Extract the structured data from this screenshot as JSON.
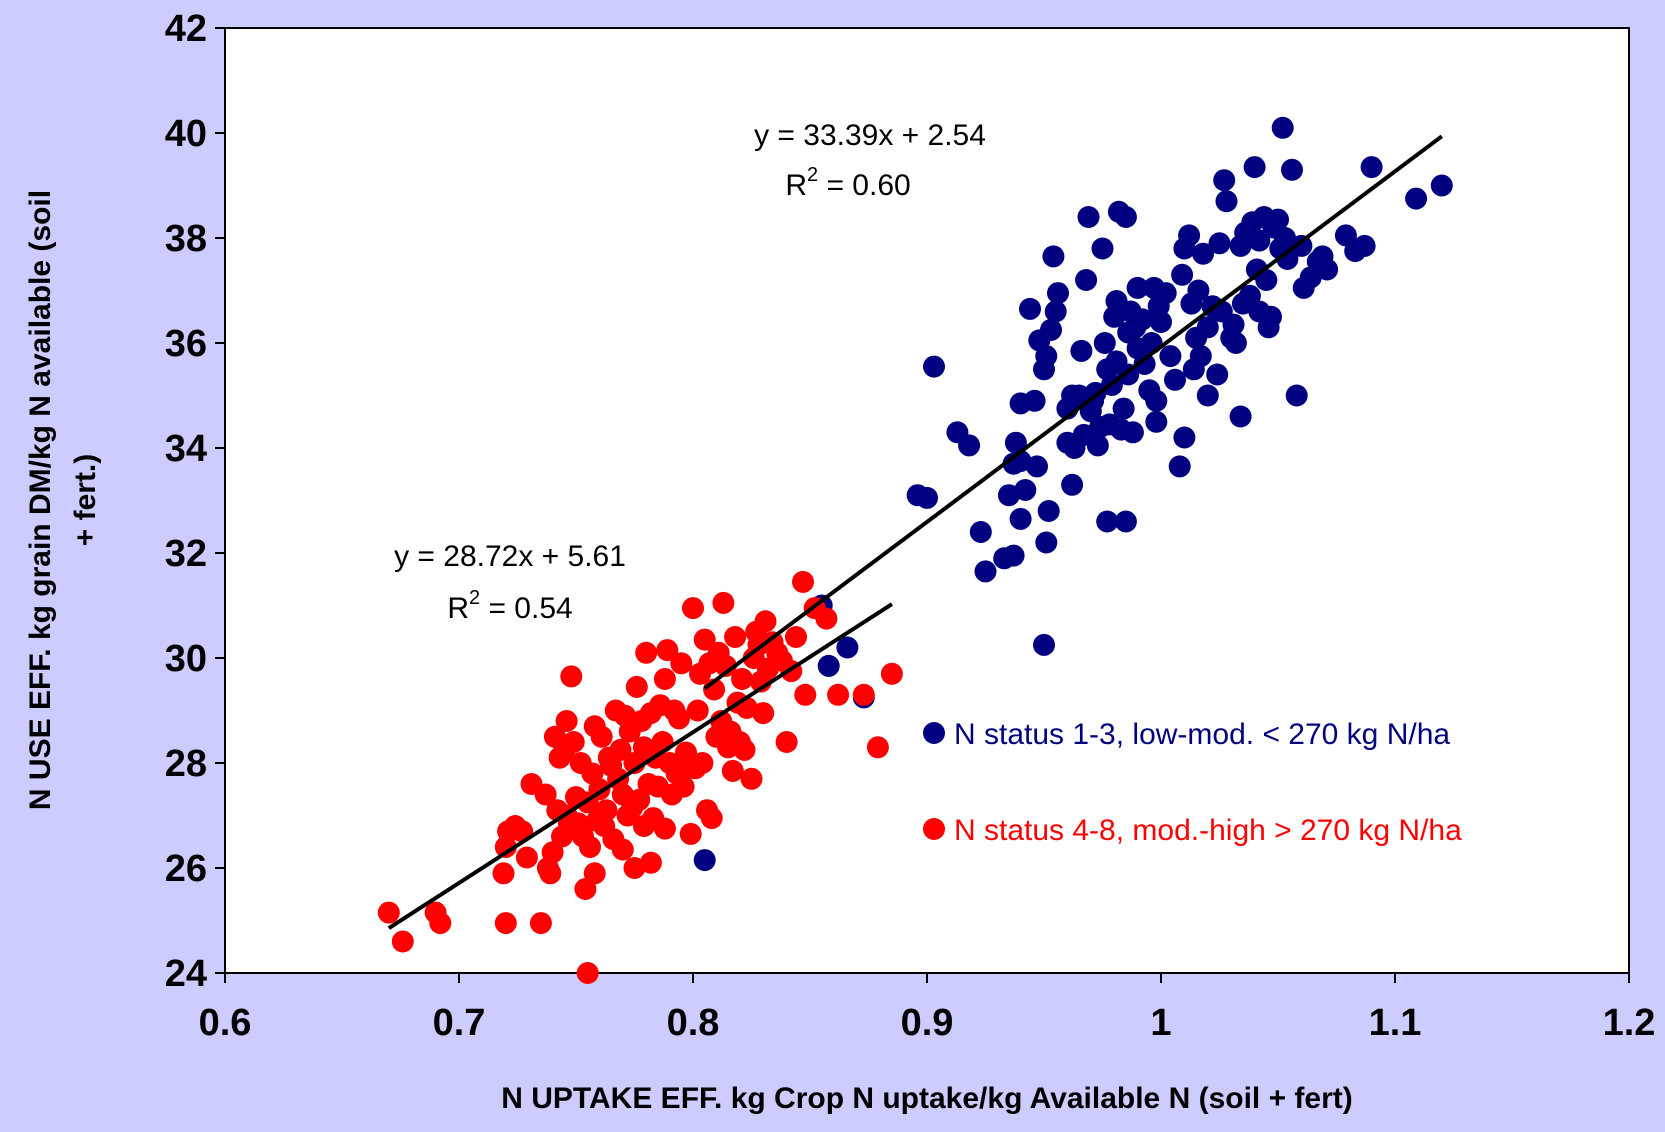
{
  "chart_data": {
    "type": "scatter",
    "xlabel": "N UPTAKE EFF. kg Crop N uptake/kg Available N (soil + fert)",
    "ylabel_line1": "N USE EFF. kg grain DM/kg N available (soil",
    "ylabel_line2": "+ fert.)",
    "xlim": [
      0.6,
      1.2
    ],
    "ylim": [
      24,
      42
    ],
    "xticks": [
      "0.6",
      "0.7",
      "0.8",
      "0.9",
      "1",
      "1.1",
      "1.2"
    ],
    "yticks": [
      "24",
      "26",
      "28",
      "30",
      "32",
      "34",
      "36",
      "38",
      "40",
      "42"
    ],
    "grid": false,
    "legend_position": "right-middle",
    "series": [
      {
        "name": "N status 1-3, low-mod. < 270 kg N/ha",
        "color": "#000080",
        "equation_line": "y = 33.39x + 2.54",
        "r2_label": "R",
        "r2_sup": "2",
        "r2_value": " = 0.60",
        "trendline": {
          "slope": 33.39,
          "intercept": 2.54,
          "x_range": [
            0.805,
            1.12
          ]
        },
        "points": [
          [
            0.805,
            26.15
          ],
          [
            0.858,
            29.85
          ],
          [
            0.866,
            30.2
          ],
          [
            0.873,
            29.25
          ],
          [
            0.855,
            31.0
          ],
          [
            0.896,
            33.1
          ],
          [
            0.9,
            33.05
          ],
          [
            0.903,
            35.55
          ],
          [
            0.913,
            34.3
          ],
          [
            0.918,
            34.05
          ],
          [
            0.923,
            32.4
          ],
          [
            0.925,
            31.65
          ],
          [
            0.933,
            31.9
          ],
          [
            0.937,
            31.95
          ],
          [
            0.935,
            33.1
          ],
          [
            0.94,
            33.75
          ],
          [
            0.94,
            32.65
          ],
          [
            0.942,
            33.2
          ],
          [
            0.947,
            33.65
          ],
          [
            0.938,
            34.1
          ],
          [
            0.937,
            33.7
          ],
          [
            0.94,
            34.85
          ],
          [
            0.944,
            36.65
          ],
          [
            0.946,
            34.9
          ],
          [
            0.948,
            36.05
          ],
          [
            0.95,
            35.5
          ],
          [
            0.951,
            35.75
          ],
          [
            0.952,
            32.8
          ],
          [
            0.951,
            32.2
          ],
          [
            0.95,
            30.25
          ],
          [
            0.953,
            36.25
          ],
          [
            0.954,
            37.65
          ],
          [
            0.955,
            36.6
          ],
          [
            0.956,
            36.95
          ],
          [
            0.962,
            33.3
          ],
          [
            0.96,
            34.1
          ],
          [
            0.96,
            34.75
          ],
          [
            0.962,
            35.0
          ],
          [
            0.963,
            34.0
          ],
          [
            0.965,
            35.0
          ],
          [
            0.966,
            35.85
          ],
          [
            0.967,
            34.25
          ],
          [
            0.968,
            37.2
          ],
          [
            0.969,
            38.4
          ],
          [
            0.97,
            34.7
          ],
          [
            0.971,
            34.9
          ],
          [
            0.972,
            35.05
          ],
          [
            0.973,
            34.05
          ],
          [
            0.974,
            34.4
          ],
          [
            0.975,
            37.8
          ],
          [
            0.976,
            36.0
          ],
          [
            0.977,
            35.5
          ],
          [
            0.977,
            32.6
          ],
          [
            0.978,
            34.45
          ],
          [
            0.979,
            35.2
          ],
          [
            0.98,
            36.5
          ],
          [
            0.981,
            36.8
          ],
          [
            0.981,
            35.65
          ],
          [
            0.982,
            38.5
          ],
          [
            0.983,
            34.35
          ],
          [
            0.984,
            34.75
          ],
          [
            0.985,
            32.6
          ],
          [
            0.985,
            38.4
          ],
          [
            0.986,
            35.4
          ],
          [
            0.986,
            36.2
          ],
          [
            0.987,
            36.6
          ],
          [
            0.988,
            34.3
          ],
          [
            0.989,
            36.3
          ],
          [
            0.99,
            35.9
          ],
          [
            0.99,
            37.05
          ],
          [
            0.992,
            36.45
          ],
          [
            0.993,
            35.6
          ],
          [
            0.995,
            35.1
          ],
          [
            0.996,
            36.0
          ],
          [
            0.997,
            37.05
          ],
          [
            0.998,
            34.5
          ],
          [
            0.998,
            34.9
          ],
          [
            0.999,
            36.7
          ],
          [
            1.0,
            36.4
          ],
          [
            1.002,
            36.95
          ],
          [
            1.004,
            35.75
          ],
          [
            1.006,
            35.3
          ],
          [
            1.008,
            33.65
          ],
          [
            1.009,
            37.3
          ],
          [
            1.01,
            34.2
          ],
          [
            1.01,
            37.8
          ],
          [
            1.012,
            38.05
          ],
          [
            1.013,
            36.75
          ],
          [
            1.014,
            35.5
          ],
          [
            1.015,
            36.1
          ],
          [
            1.016,
            37.0
          ],
          [
            1.017,
            35.75
          ],
          [
            1.018,
            37.7
          ],
          [
            1.02,
            35.0
          ],
          [
            1.02,
            36.3
          ],
          [
            1.022,
            36.7
          ],
          [
            1.024,
            35.4
          ],
          [
            1.025,
            37.9
          ],
          [
            1.026,
            36.6
          ],
          [
            1.027,
            39.1
          ],
          [
            1.028,
            38.7
          ],
          [
            1.03,
            36.1
          ],
          [
            1.031,
            36.35
          ],
          [
            1.032,
            36.0
          ],
          [
            1.034,
            37.85
          ],
          [
            1.034,
            34.6
          ],
          [
            1.035,
            36.75
          ],
          [
            1.036,
            38.1
          ],
          [
            1.038,
            36.9
          ],
          [
            1.039,
            38.3
          ],
          [
            1.04,
            39.35
          ],
          [
            1.041,
            37.4
          ],
          [
            1.042,
            37.95
          ],
          [
            1.042,
            36.6
          ],
          [
            1.044,
            38.4
          ],
          [
            1.045,
            37.2
          ],
          [
            1.046,
            36.3
          ],
          [
            1.047,
            36.5
          ],
          [
            1.048,
            38.2
          ],
          [
            1.05,
            38.35
          ],
          [
            1.051,
            37.8
          ],
          [
            1.052,
            40.1
          ],
          [
            1.053,
            38.0
          ],
          [
            1.054,
            37.6
          ],
          [
            1.056,
            39.3
          ],
          [
            1.058,
            35.0
          ],
          [
            1.06,
            37.85
          ],
          [
            1.061,
            37.05
          ],
          [
            1.064,
            37.25
          ],
          [
            1.067,
            37.55
          ],
          [
            1.069,
            37.65
          ],
          [
            1.071,
            37.4
          ],
          [
            1.079,
            38.05
          ],
          [
            1.083,
            37.75
          ],
          [
            1.087,
            37.85
          ],
          [
            1.09,
            39.35
          ],
          [
            1.109,
            38.75
          ],
          [
            1.12,
            39.0
          ]
        ]
      },
      {
        "name": "N status 4-8, mod.-high > 270 kg N/ha",
        "color": "#ff0000",
        "equation_line": "y = 28.72x + 5.61",
        "r2_label": "R",
        "r2_sup": "2",
        "r2_value": " = 0.54",
        "trendline": {
          "slope": 28.72,
          "intercept": 5.61,
          "x_range": [
            0.67,
            0.885
          ]
        },
        "points": [
          [
            0.67,
            25.15
          ],
          [
            0.676,
            24.6
          ],
          [
            0.69,
            25.15
          ],
          [
            0.692,
            24.95
          ],
          [
            0.72,
            24.95
          ],
          [
            0.719,
            25.9
          ],
          [
            0.72,
            26.4
          ],
          [
            0.721,
            26.7
          ],
          [
            0.724,
            26.8
          ],
          [
            0.727,
            26.7
          ],
          [
            0.729,
            26.2
          ],
          [
            0.731,
            27.6
          ],
          [
            0.735,
            24.95
          ],
          [
            0.737,
            27.4
          ],
          [
            0.738,
            26.0
          ],
          [
            0.739,
            25.9
          ],
          [
            0.74,
            26.3
          ],
          [
            0.741,
            28.5
          ],
          [
            0.742,
            27.1
          ],
          [
            0.743,
            28.1
          ],
          [
            0.744,
            26.6
          ],
          [
            0.745,
            28.25
          ],
          [
            0.746,
            27.0
          ],
          [
            0.746,
            28.8
          ],
          [
            0.747,
            26.85
          ],
          [
            0.748,
            29.65
          ],
          [
            0.749,
            28.4
          ],
          [
            0.75,
            27.35
          ],
          [
            0.751,
            26.85
          ],
          [
            0.752,
            28.0
          ],
          [
            0.753,
            26.6
          ],
          [
            0.754,
            25.6
          ],
          [
            0.755,
            24.0
          ],
          [
            0.755,
            27.25
          ],
          [
            0.756,
            26.4
          ],
          [
            0.757,
            27.8
          ],
          [
            0.758,
            28.7
          ],
          [
            0.758,
            25.9
          ],
          [
            0.759,
            26.9
          ],
          [
            0.76,
            27.5
          ],
          [
            0.761,
            28.5
          ],
          [
            0.762,
            26.8
          ],
          [
            0.763,
            27.1
          ],
          [
            0.764,
            28.1
          ],
          [
            0.765,
            27.95
          ],
          [
            0.766,
            26.55
          ],
          [
            0.767,
            29.0
          ],
          [
            0.768,
            27.7
          ],
          [
            0.769,
            28.25
          ],
          [
            0.77,
            26.35
          ],
          [
            0.77,
            27.4
          ],
          [
            0.771,
            28.9
          ],
          [
            0.772,
            27.0
          ],
          [
            0.773,
            28.6
          ],
          [
            0.774,
            27.15
          ],
          [
            0.775,
            26.0
          ],
          [
            0.775,
            28.0
          ],
          [
            0.776,
            29.45
          ],
          [
            0.777,
            27.3
          ],
          [
            0.778,
            28.8
          ],
          [
            0.779,
            26.8
          ],
          [
            0.779,
            28.3
          ],
          [
            0.78,
            30.1
          ],
          [
            0.781,
            27.6
          ],
          [
            0.782,
            28.95
          ],
          [
            0.782,
            26.1
          ],
          [
            0.783,
            26.95
          ],
          [
            0.784,
            28.1
          ],
          [
            0.785,
            27.55
          ],
          [
            0.786,
            29.1
          ],
          [
            0.787,
            28.4
          ],
          [
            0.788,
            26.75
          ],
          [
            0.788,
            29.6
          ],
          [
            0.789,
            30.15
          ],
          [
            0.79,
            28.0
          ],
          [
            0.791,
            27.4
          ],
          [
            0.792,
            29.0
          ],
          [
            0.793,
            27.8
          ],
          [
            0.794,
            28.85
          ],
          [
            0.795,
            29.9
          ],
          [
            0.796,
            27.55
          ],
          [
            0.797,
            28.2
          ],
          [
            0.798,
            28.0
          ],
          [
            0.799,
            26.65
          ],
          [
            0.8,
            30.95
          ],
          [
            0.801,
            27.9
          ],
          [
            0.802,
            29.0
          ],
          [
            0.803,
            29.7
          ],
          [
            0.804,
            28.0
          ],
          [
            0.805,
            30.35
          ],
          [
            0.806,
            27.1
          ],
          [
            0.807,
            29.9
          ],
          [
            0.808,
            26.95
          ],
          [
            0.809,
            29.4
          ],
          [
            0.81,
            28.5
          ],
          [
            0.811,
            30.1
          ],
          [
            0.812,
            28.8
          ],
          [
            0.813,
            31.05
          ],
          [
            0.814,
            29.85
          ],
          [
            0.815,
            28.3
          ],
          [
            0.816,
            28.6
          ],
          [
            0.817,
            27.85
          ],
          [
            0.818,
            30.4
          ],
          [
            0.819,
            29.15
          ],
          [
            0.82,
            28.4
          ],
          [
            0.821,
            29.6
          ],
          [
            0.822,
            28.25
          ],
          [
            0.823,
            29.05
          ],
          [
            0.825,
            27.7
          ],
          [
            0.826,
            30.0
          ],
          [
            0.827,
            30.5
          ],
          [
            0.828,
            30.25
          ],
          [
            0.829,
            29.55
          ],
          [
            0.83,
            28.95
          ],
          [
            0.831,
            30.7
          ],
          [
            0.832,
            29.8
          ],
          [
            0.834,
            30.3
          ],
          [
            0.836,
            30.1
          ],
          [
            0.838,
            29.95
          ],
          [
            0.84,
            28.4
          ],
          [
            0.842,
            29.75
          ],
          [
            0.844,
            30.4
          ],
          [
            0.847,
            31.45
          ],
          [
            0.848,
            29.3
          ],
          [
            0.852,
            30.95
          ],
          [
            0.857,
            30.75
          ],
          [
            0.862,
            29.3
          ],
          [
            0.873,
            29.3
          ],
          [
            0.879,
            28.3
          ],
          [
            0.885,
            29.7
          ]
        ]
      }
    ]
  }
}
